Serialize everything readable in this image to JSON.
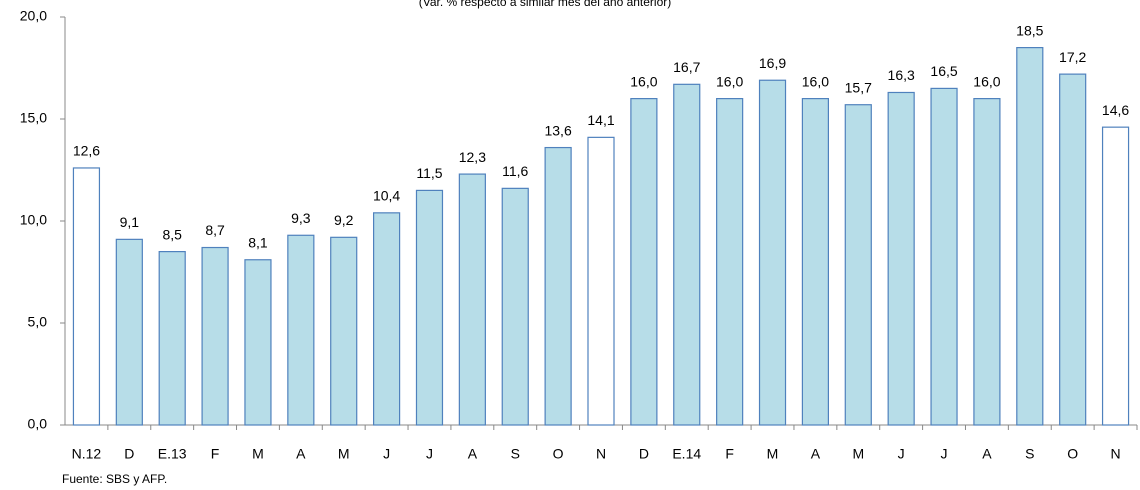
{
  "chart_data": {
    "type": "bar",
    "subtitle": "(Var. % respecto a similar mes del año anterior)",
    "source": "Fuente: SBS y AFP.",
    "categories": [
      "N.12",
      "D",
      "E.13",
      "F",
      "M",
      "A",
      "M",
      "J",
      "J",
      "A",
      "S",
      "O",
      "N",
      "D",
      "E.14",
      "F",
      "M",
      "A",
      "M",
      "J",
      "J",
      "A",
      "S",
      "O",
      "N"
    ],
    "values": [
      12.6,
      9.1,
      8.5,
      8.7,
      8.1,
      9.3,
      9.2,
      10.4,
      11.5,
      12.3,
      11.6,
      13.6,
      14.1,
      16.0,
      16.7,
      16.0,
      16.9,
      16.0,
      15.7,
      16.3,
      16.5,
      16.0,
      18.5,
      17.2,
      14.6
    ],
    "value_labels": [
      "12,6",
      "9,1",
      "8,5",
      "8,7",
      "8,1",
      "9,3",
      "9,2",
      "10,4",
      "11,5",
      "12,3",
      "11,6",
      "13,6",
      "14,1",
      "16,0",
      "16,7",
      "16,0",
      "16,9",
      "16,0",
      "15,7",
      "16,3",
      "16,5",
      "16,0",
      "18,5",
      "17,2",
      "14,6"
    ],
    "colors": [
      "#ffffff",
      "#b7dde8",
      "#b7dde8",
      "#b7dde8",
      "#b7dde8",
      "#b7dde8",
      "#b7dde8",
      "#b7dde8",
      "#b7dde8",
      "#b7dde8",
      "#b7dde8",
      "#b7dde8",
      "#ffffff",
      "#b7dde8",
      "#b7dde8",
      "#b7dde8",
      "#b7dde8",
      "#b7dde8",
      "#b7dde8",
      "#b7dde8",
      "#b7dde8",
      "#b7dde8",
      "#b7dde8",
      "#b7dde8",
      "#ffffff"
    ],
    "edge_color": "#4f81bd",
    "ylim": [
      0,
      20
    ],
    "yticks": [
      {
        "value": 0,
        "label": "0,0"
      },
      {
        "value": 5,
        "label": "5,0"
      },
      {
        "value": 10,
        "label": "10,0"
      },
      {
        "value": 15,
        "label": "15,0"
      },
      {
        "value": 20,
        "label": "20,0"
      }
    ],
    "grid": false
  }
}
